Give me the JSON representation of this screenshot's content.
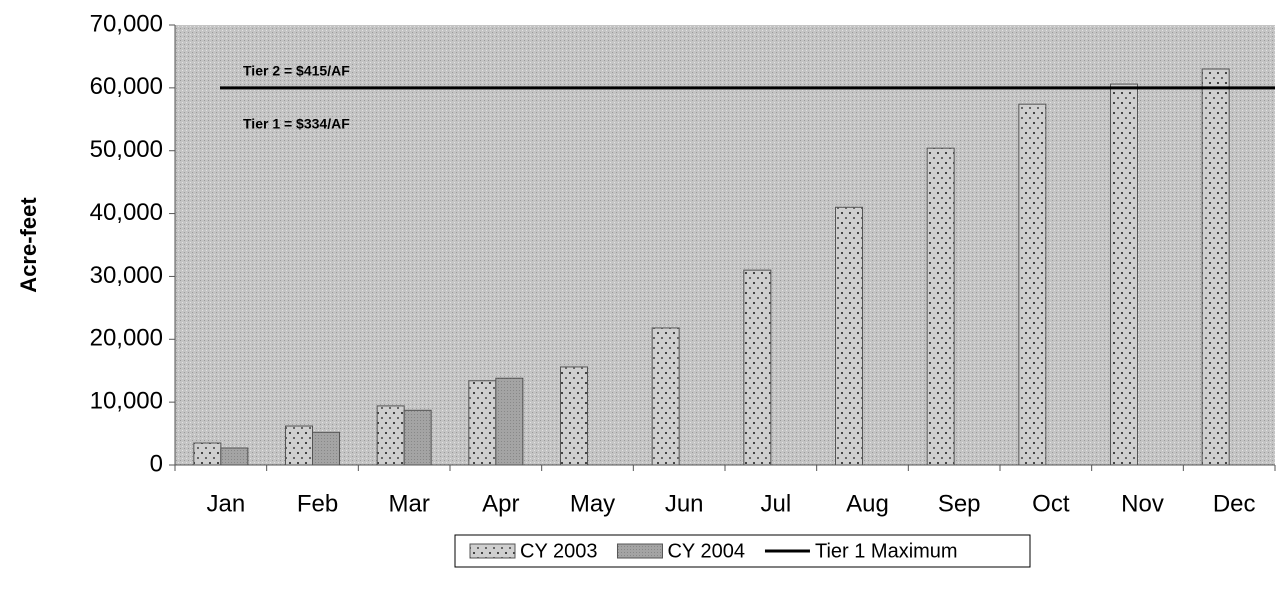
{
  "chart_data": {
    "type": "bar",
    "y_label": "Acre-feet",
    "annotations": [
      "Tier 2 = $415/AF",
      "Tier 1 = $334/AF"
    ],
    "categories": [
      "Jan",
      "Feb",
      "Mar",
      "Apr",
      "May",
      "Jun",
      "Jul",
      "Aug",
      "Sep",
      "Oct",
      "Nov",
      "Dec"
    ],
    "series": [
      {
        "name": "CY 2003",
        "type": "bar",
        "color": "#c8c8c8",
        "values": [
          3500,
          6200,
          9400,
          13400,
          15600,
          21800,
          31000,
          41000,
          50400,
          57400,
          60600,
          63000
        ]
      },
      {
        "name": "CY 2004",
        "type": "bar",
        "color": "#a8a8a8",
        "values": [
          2700,
          5200,
          8700,
          13800,
          null,
          null,
          null,
          null,
          null,
          null,
          null,
          null
        ]
      },
      {
        "name": "Tier 1 Maximum",
        "type": "line",
        "color": "#000000",
        "values": [
          60000,
          60000,
          60000,
          60000,
          60000,
          60000,
          60000,
          60000,
          60000,
          60000,
          60000,
          60000
        ]
      }
    ],
    "ylim": [
      0,
      70000
    ],
    "yticks": [
      0,
      {
        "value": 10000,
        "label": "10,000"
      },
      {
        "value": 20000,
        "label": "20,000"
      },
      {
        "value": 30000,
        "label": "30,000"
      },
      {
        "value": 40000,
        "label": "40,000"
      },
      {
        "value": 50000,
        "label": "50,000"
      },
      {
        "value": 60000,
        "label": "60,000"
      },
      {
        "value": 70000,
        "label": "70,000"
      }
    ],
    "legend": "bottom"
  }
}
